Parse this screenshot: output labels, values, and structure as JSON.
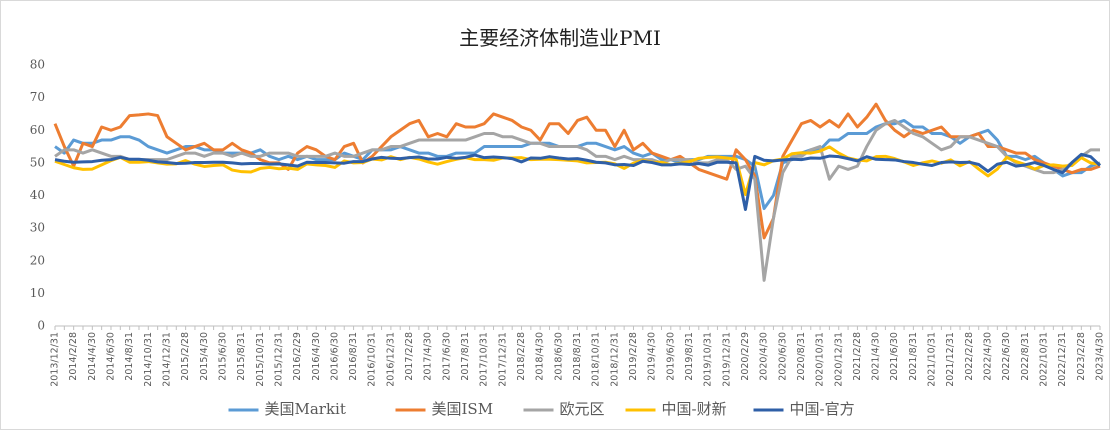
{
  "chart_data": {
    "type": "line",
    "title": "主要经济体制造业PMI",
    "categories": [
      "2013/12/31",
      null,
      "2014/2/28",
      null,
      "2014/4/30",
      null,
      "2014/6/30",
      null,
      "2014/8/31",
      null,
      "2014/10/31",
      null,
      "2014/12/31",
      null,
      "2015/2/28",
      null,
      "2015/4/30",
      null,
      "2015/6/30",
      null,
      "2015/8/31",
      null,
      "2015/10/31",
      null,
      "2015/12/31",
      null,
      "2016/2/29",
      null,
      "2016/4/30",
      null,
      "2016/6/30",
      null,
      "2016/8/31",
      null,
      "2016/10/31",
      null,
      "2016/12/31",
      null,
      "2017/2/28",
      null,
      "2017/4/30",
      null,
      "2017/6/30",
      null,
      "2017/8/31",
      null,
      "2017/10/31",
      null,
      "2017/12/31",
      null,
      "2018/2/28",
      null,
      "2018/4/30",
      null,
      "2018/6/30",
      null,
      "2018/8/31",
      null,
      "2018/10/31",
      null,
      "2018/12/31",
      null,
      "2019/2/28",
      null,
      "2019/4/30",
      null,
      "2019/6/30",
      null,
      "2019/8/31",
      null,
      "2019/10/31",
      null,
      "2019/12/31",
      null,
      "2020/2/29",
      null,
      "2020/4/30",
      null,
      "2020/6/30",
      null,
      "2020/8/31",
      null,
      "2020/10/31",
      null,
      "2020/12/31",
      null,
      "2021/2/28",
      null,
      "2021/4/30",
      null,
      "2021/6/30",
      null,
      "2021/8/31",
      null,
      "2021/10/31",
      null,
      "2021/12/31",
      null,
      "2022/2/28",
      null,
      "2022/4/30",
      null,
      "2022/6/30",
      null,
      "2022/8/31",
      null,
      "2022/10/31",
      null,
      "2022/12/31",
      null,
      "2023/2/28",
      null,
      "2023/4/30"
    ],
    "series": [
      {
        "name": "美国Markit",
        "color": "#5b9bd5",
        "values": [
          55,
          53,
          57,
          56,
          56,
          57,
          57,
          58,
          58,
          57,
          55,
          54,
          53,
          54,
          55,
          55,
          54,
          54,
          53,
          53,
          53,
          53,
          54,
          52,
          51,
          52,
          51,
          52,
          51,
          51,
          51,
          53,
          52,
          51,
          54,
          54,
          54,
          55,
          54,
          53,
          53,
          52,
          52,
          53,
          53,
          53,
          55,
          55,
          55,
          55,
          55,
          56,
          56,
          56,
          55,
          55,
          55,
          56,
          56,
          55,
          54,
          55,
          53,
          52,
          53,
          51,
          51,
          50,
          51,
          51,
          52,
          52,
          52,
          52,
          51,
          49,
          36,
          40,
          50,
          51,
          53,
          54,
          54,
          57,
          57,
          59,
          59,
          59,
          61,
          62,
          62,
          63,
          61,
          61,
          59,
          59,
          58,
          56,
          58,
          59,
          60,
          57,
          52,
          52,
          51,
          52,
          50,
          48,
          46,
          47,
          47,
          49,
          50
        ]
      },
      {
        "name": "美国ISM",
        "color": "#ed7d31",
        "values": [
          62,
          55,
          49,
          56,
          55,
          61,
          60,
          61,
          64.5,
          64.7,
          65,
          64.5,
          58,
          56,
          54,
          55,
          56,
          54,
          54,
          56,
          54,
          53,
          51,
          50,
          50,
          48,
          53,
          55,
          54,
          52,
          51,
          55,
          56,
          50,
          52,
          55,
          58,
          60,
          62,
          63,
          58,
          59,
          58,
          62,
          61,
          61,
          62,
          65,
          64,
          63,
          61,
          60,
          57,
          62,
          62,
          59,
          63,
          64,
          60,
          60,
          55,
          60,
          54,
          56,
          53,
          52,
          51,
          52,
          50,
          48,
          47,
          46,
          45,
          54,
          51,
          46,
          27,
          33,
          52,
          57,
          62,
          63,
          61,
          63,
          61,
          65,
          61,
          64,
          68,
          63,
          60,
          58,
          60,
          59,
          60,
          61,
          58,
          58,
          58,
          59,
          55,
          55,
          54,
          53,
          53,
          51,
          50,
          49,
          48,
          47,
          48,
          48,
          49
        ]
      },
      {
        "name": "欧元区",
        "color": "#a5a5a5",
        "values": [
          52,
          54,
          54,
          53,
          54,
          53,
          52,
          52,
          51,
          51,
          51,
          51,
          51,
          52,
          53,
          53,
          52,
          53,
          53,
          52,
          53,
          52,
          52,
          53,
          53,
          53,
          52,
          52,
          52,
          52,
          53,
          52,
          52,
          53,
          54,
          54,
          55,
          55,
          56,
          57,
          57,
          57,
          57,
          57,
          57,
          58,
          59,
          59,
          58,
          58,
          57,
          56,
          56,
          55,
          55,
          55,
          55,
          54,
          52,
          52,
          51,
          52,
          51,
          51,
          51,
          50,
          51,
          51,
          51,
          50,
          50,
          51,
          51,
          48,
          49,
          45,
          14,
          33,
          47,
          52,
          52,
          54,
          55,
          45,
          49,
          48,
          49,
          55,
          60,
          62,
          63,
          61,
          59,
          58,
          56,
          54,
          55,
          58,
          58,
          57,
          56,
          55,
          52,
          50,
          49,
          48,
          47,
          47,
          48,
          50,
          52,
          54,
          54
        ]
      },
      {
        "name": "中国-财新",
        "color": "#ffc000",
        "values": [
          50.5,
          49.5,
          48.5,
          48,
          48.1,
          49.4,
          50.7,
          51.7,
          50.2,
          50.2,
          50.4,
          50,
          49.6,
          49.7,
          50.7,
          49.6,
          48.9,
          49.2,
          49.4,
          47.8,
          47.3,
          47.2,
          48.3,
          48.6,
          48.2,
          48.4,
          48,
          49.7,
          49.4,
          49.2,
          48.6,
          50.6,
          50,
          50.1,
          51.2,
          50.9,
          51.9,
          51,
          51.7,
          51.2,
          50.3,
          49.6,
          50.4,
          51.1,
          51.6,
          51,
          51,
          50.8,
          51.5,
          51.5,
          51.6,
          51,
          51.1,
          51.1,
          51,
          50.8,
          50.6,
          50,
          50.1,
          50.2,
          49.7,
          48.3,
          49.9,
          50.8,
          50.2,
          50.2,
          49.4,
          49.9,
          50.4,
          51.4,
          51.7,
          51.8,
          51.5,
          51.1,
          40.3,
          50.1,
          49.4,
          50.7,
          51.2,
          52.8,
          53.1,
          53,
          53.6,
          54.9,
          53,
          51.5,
          50.9,
          50.6,
          51.9,
          52,
          51.3,
          50.3,
          49.2,
          50,
          50.6,
          49.9,
          50.9,
          49.1,
          50.4,
          48.1,
          46,
          48.1,
          51.7,
          50.4,
          49.5,
          48.1,
          49.2,
          49.4,
          49,
          49.2,
          51.6,
          50,
          49.5
        ]
      },
      {
        "name": "中国-官方",
        "color": "#2f5fa7",
        "values": [
          51,
          50.5,
          50.2,
          50.3,
          50.4,
          50.8,
          51,
          51.7,
          51.1,
          51.1,
          50.8,
          50.3,
          50.1,
          49.8,
          49.9,
          50.1,
          50.1,
          50.2,
          50.2,
          50,
          49.7,
          49.8,
          49.8,
          49.6,
          49.7,
          49.4,
          49,
          50.2,
          50.1,
          50.1,
          50,
          49.9,
          50.4,
          50.4,
          51.2,
          51.7,
          51.4,
          51.3,
          51.6,
          51.8,
          51.2,
          51.2,
          51.7,
          51.4,
          51.7,
          52.4,
          51.6,
          51.8,
          51.6,
          51.3,
          50.3,
          51.5,
          51.4,
          51.9,
          51.5,
          51.2,
          51.3,
          50.8,
          50.2,
          50,
          49.4,
          49.5,
          49.2,
          50.5,
          50.1,
          49.4,
          49.4,
          49.7,
          49.5,
          49.8,
          49.3,
          50.2,
          50.2,
          50,
          35.7,
          52,
          50.8,
          50.6,
          50.9,
          51.1,
          51,
          51.5,
          51.4,
          52.1,
          51.9,
          51.3,
          50.6,
          51.9,
          51.1,
          51,
          50.9,
          50.4,
          50.1,
          49.6,
          49.2,
          50.1,
          50.3,
          50.1,
          50.2,
          49.5,
          47.4,
          49.6,
          50.2,
          49,
          49.4,
          50.1,
          49.2,
          48,
          47,
          50.1,
          52.6,
          51.9,
          49.2
        ]
      }
    ],
    "ylim": [
      0,
      80
    ],
    "yticks": [
      0,
      10,
      20,
      30,
      40,
      50,
      60,
      70,
      80
    ],
    "grid": false,
    "legend": "bottom"
  }
}
